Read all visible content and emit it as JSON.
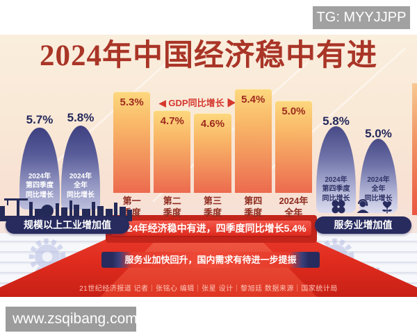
{
  "overlays": {
    "tg_badge": "TG: MYYJJPP",
    "watermark": "www.zsqibang.com"
  },
  "poster": {
    "title": "2024年中国经济稳中有进",
    "gdp_caption": "◀ GDP同比增长 ▶",
    "center_banner": "2024年经济稳中有进，四季度同比增长5.4%",
    "ribbon_banner": "服务业加快回升，国内需求有待进一步提振",
    "credits": "21世纪经济报道  记者｜张铭心  编辑｜张星  设计｜黎旭廷  数据来源｜国家统计局",
    "industry": {
      "label": "规模以上工业增加值",
      "stats": [
        {
          "value": "5.7%",
          "lines": [
            "2024年",
            "第四季度",
            "同比增长"
          ]
        },
        {
          "value": "5.8%",
          "lines": [
            "2024年",
            "全年",
            "同比增长"
          ]
        }
      ]
    },
    "services": {
      "label": "服务业增加值",
      "stats": [
        {
          "value": "5.8%",
          "lines": [
            "2024年",
            "第四季度",
            "同比增长"
          ]
        },
        {
          "value": "5.0%",
          "lines": [
            "2024年",
            "全年",
            "同比增长"
          ]
        }
      ]
    },
    "colors": {
      "title_red": "#a93527",
      "banner_red": "#e8392e",
      "navy": "#272b5e",
      "bar_top": "#fcd87e",
      "bar_bottom": "#ec6a4e",
      "background_cream": "#faeedd"
    }
  },
  "chart_data": {
    "type": "bar",
    "title": "GDP同比增长",
    "unit": "%",
    "categories": [
      "第一季度",
      "第二季度",
      "第三季度",
      "第四季度",
      "2024年全年"
    ],
    "category_lines": [
      [
        "第一",
        "季度"
      ],
      [
        "第二",
        "季度"
      ],
      [
        "第三",
        "季度"
      ],
      [
        "第四",
        "季度"
      ],
      [
        "2024年",
        "全年"
      ]
    ],
    "values": [
      5.3,
      4.7,
      4.6,
      5.4,
      5.0
    ],
    "value_labels": [
      "5.3%",
      "4.7%",
      "4.6%",
      "5.4%",
      "5.0%"
    ],
    "annotation": "2024年经济稳中有进，四季度同比增长5.4%",
    "legend_position": "none",
    "grid": false,
    "side_stats": {
      "industry_added_value": {
        "label": "规模以上工业增加值",
        "q4_yoy": 5.7,
        "year_yoy": 5.8
      },
      "services_added_value": {
        "label": "服务业增加值",
        "q4_yoy": 5.8,
        "year_yoy": 5.0
      }
    }
  }
}
